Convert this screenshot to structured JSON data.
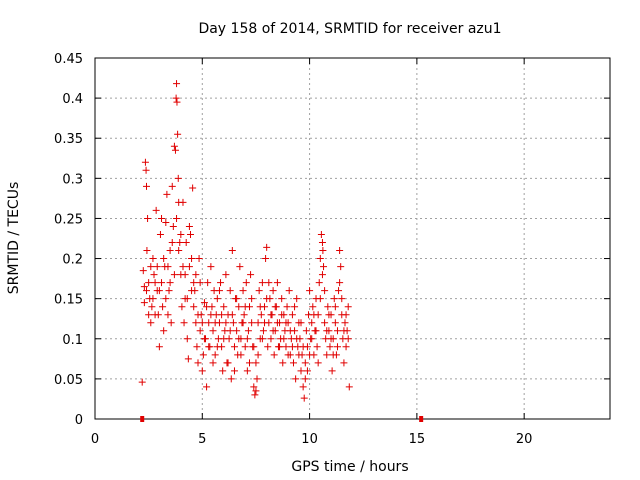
{
  "chart_data": {
    "type": "scatter",
    "title": "Day 158 of 2014, SRMTID for receiver azu1",
    "xlabel": "GPS time / hours",
    "ylabel": "SRMTID / TECUs",
    "xlim": [
      0,
      24
    ],
    "ylim": [
      0,
      0.45
    ],
    "xticks": [
      0,
      5,
      10,
      15,
      20
    ],
    "yticks": [
      0,
      0.05,
      0.1,
      0.15,
      0.2,
      0.25,
      0.3,
      0.35,
      0.4,
      0.45
    ],
    "xtick_labels": [
      "0",
      "5",
      "10",
      "15",
      "20"
    ],
    "ytick_labels": [
      "0",
      "0.05",
      "0.1",
      "0.15",
      "0.2",
      "0.25",
      "0.3",
      "0.35",
      "0.4",
      "0.45"
    ],
    "grid": true,
    "marker": "plus",
    "color": "#e00000",
    "axis_markers": [
      {
        "x": 2.2,
        "y": 0
      },
      {
        "x": 15.2,
        "y": 0
      }
    ],
    "series": [
      {
        "name": "azu1",
        "points": [
          [
            2.2,
            0.046
          ],
          [
            2.25,
            0.185
          ],
          [
            2.3,
            0.165
          ],
          [
            2.35,
            0.32
          ],
          [
            2.38,
            0.31
          ],
          [
            2.4,
            0.29
          ],
          [
            2.42,
            0.21
          ],
          [
            2.45,
            0.25
          ],
          [
            2.5,
            0.17
          ],
          [
            2.55,
            0.15
          ],
          [
            2.6,
            0.12
          ],
          [
            2.65,
            0.14
          ],
          [
            2.7,
            0.2
          ],
          [
            2.75,
            0.18
          ],
          [
            2.8,
            0.17
          ],
          [
            2.85,
            0.26
          ],
          [
            2.9,
            0.16
          ],
          [
            2.95,
            0.13
          ],
          [
            3.0,
            0.09
          ],
          [
            3.05,
            0.23
          ],
          [
            3.1,
            0.25
          ],
          [
            3.15,
            0.14
          ],
          [
            3.2,
            0.11
          ],
          [
            3.25,
            0.19
          ],
          [
            3.3,
            0.245
          ],
          [
            3.35,
            0.28
          ],
          [
            3.4,
            0.13
          ],
          [
            3.45,
            0.16
          ],
          [
            3.5,
            0.21
          ],
          [
            3.55,
            0.12
          ],
          [
            3.6,
            0.29
          ],
          [
            3.65,
            0.24
          ],
          [
            3.7,
            0.34
          ],
          [
            3.75,
            0.335
          ],
          [
            3.78,
            0.4
          ],
          [
            3.8,
            0.418
          ],
          [
            3.82,
            0.395
          ],
          [
            3.85,
            0.355
          ],
          [
            3.88,
            0.3
          ],
          [
            3.9,
            0.27
          ],
          [
            3.95,
            0.22
          ],
          [
            4.0,
            0.18
          ],
          [
            4.05,
            0.14
          ],
          [
            4.1,
            0.27
          ],
          [
            4.15,
            0.12
          ],
          [
            4.2,
            0.15
          ],
          [
            4.25,
            0.22
          ],
          [
            4.3,
            0.1
          ],
          [
            4.35,
            0.075
          ],
          [
            4.4,
            0.24
          ],
          [
            4.45,
            0.23
          ],
          [
            4.5,
            0.2
          ],
          [
            4.55,
            0.288
          ],
          [
            4.6,
            0.17
          ],
          [
            4.65,
            0.16
          ],
          [
            4.7,
            0.12
          ],
          [
            4.75,
            0.09
          ],
          [
            4.8,
            0.07
          ],
          [
            4.85,
            0.2
          ],
          [
            4.9,
            0.11
          ],
          [
            4.95,
            0.13
          ],
          [
            5.0,
            0.06
          ],
          [
            5.05,
            0.08
          ],
          [
            5.1,
            0.145
          ],
          [
            5.15,
            0.1
          ],
          [
            5.2,
            0.04
          ],
          [
            5.25,
            0.17
          ],
          [
            5.3,
            0.12
          ],
          [
            5.35,
            0.09
          ],
          [
            5.4,
            0.19
          ],
          [
            5.45,
            0.14
          ],
          [
            5.5,
            0.11
          ],
          [
            5.55,
            0.16
          ],
          [
            5.6,
            0.08
          ],
          [
            5.65,
            0.13
          ],
          [
            5.7,
            0.15
          ],
          [
            5.75,
            0.1
          ],
          [
            5.8,
            0.12
          ],
          [
            5.85,
            0.17
          ],
          [
            5.9,
            0.09
          ],
          [
            5.95,
            0.06
          ],
          [
            6.0,
            0.14
          ],
          [
            6.05,
            0.11
          ],
          [
            6.1,
            0.18
          ],
          [
            6.15,
            0.07
          ],
          [
            6.2,
            0.13
          ],
          [
            6.25,
            0.1
          ],
          [
            6.3,
            0.16
          ],
          [
            6.35,
            0.05
          ],
          [
            6.4,
            0.21
          ],
          [
            6.45,
            0.12
          ],
          [
            6.5,
            0.09
          ],
          [
            6.55,
            0.15
          ],
          [
            6.6,
            0.11
          ],
          [
            6.65,
            0.08
          ],
          [
            6.7,
            0.14
          ],
          [
            6.75,
            0.19
          ],
          [
            6.8,
            0.1
          ],
          [
            6.85,
            0.12
          ],
          [
            6.9,
            0.16
          ],
          [
            6.95,
            0.13
          ],
          [
            7.0,
            0.09
          ],
          [
            7.05,
            0.17
          ],
          [
            7.1,
            0.06
          ],
          [
            7.15,
            0.11
          ],
          [
            7.2,
            0.14
          ],
          [
            7.25,
            0.18
          ],
          [
            7.3,
            0.15
          ],
          [
            7.35,
            0.09
          ],
          [
            7.4,
            0.04
          ],
          [
            7.45,
            0.03
          ],
          [
            7.5,
            0.07
          ],
          [
            7.55,
            0.05
          ],
          [
            7.6,
            0.12
          ],
          [
            7.65,
            0.16
          ],
          [
            7.7,
            0.1
          ],
          [
            7.75,
            0.13
          ],
          [
            7.8,
            0.17
          ],
          [
            7.85,
            0.11
          ],
          [
            7.9,
            0.14
          ],
          [
            7.95,
            0.2
          ],
          [
            8.0,
            0.214
          ],
          [
            8.05,
            0.09
          ],
          [
            8.1,
            0.12
          ],
          [
            8.15,
            0.15
          ],
          [
            8.2,
            0.1
          ],
          [
            8.25,
            0.13
          ],
          [
            8.3,
            0.16
          ],
          [
            8.35,
            0.08
          ],
          [
            8.4,
            0.11
          ],
          [
            8.45,
            0.14
          ],
          [
            8.5,
            0.17
          ],
          [
            8.55,
            0.09
          ],
          [
            8.6,
            0.12
          ],
          [
            8.65,
            0.1
          ],
          [
            8.7,
            0.15
          ],
          [
            8.75,
            0.07
          ],
          [
            8.8,
            0.13
          ],
          [
            8.85,
            0.11
          ],
          [
            8.9,
            0.09
          ],
          [
            8.95,
            0.14
          ],
          [
            9.0,
            0.12
          ],
          [
            9.05,
            0.16
          ],
          [
            9.1,
            0.08
          ],
          [
            9.15,
            0.1
          ],
          [
            9.2,
            0.13
          ],
          [
            9.25,
            0.07
          ],
          [
            9.3,
            0.11
          ],
          [
            9.35,
            0.05
          ],
          [
            9.4,
            0.15
          ],
          [
            9.45,
            0.09
          ],
          [
            9.5,
            0.12
          ],
          [
            9.55,
            0.1
          ],
          [
            9.6,
            0.06
          ],
          [
            9.65,
            0.08
          ],
          [
            9.7,
            0.04
          ],
          [
            9.75,
            0.026
          ],
          [
            9.8,
            0.07
          ],
          [
            9.85,
            0.11
          ],
          [
            9.9,
            0.09
          ],
          [
            9.95,
            0.13
          ],
          [
            10.0,
            0.16
          ],
          [
            10.05,
            0.1
          ],
          [
            10.1,
            0.12
          ],
          [
            10.15,
            0.14
          ],
          [
            10.2,
            0.08
          ],
          [
            10.25,
            0.11
          ],
          [
            10.3,
            0.15
          ],
          [
            10.35,
            0.09
          ],
          [
            10.4,
            0.13
          ],
          [
            10.45,
            0.17
          ],
          [
            10.5,
            0.2
          ],
          [
            10.55,
            0.23
          ],
          [
            10.6,
            0.22
          ],
          [
            10.62,
            0.21
          ],
          [
            10.65,
            0.19
          ],
          [
            10.7,
            0.12
          ],
          [
            10.75,
            0.1
          ],
          [
            10.8,
            0.08
          ],
          [
            10.85,
            0.14
          ],
          [
            10.9,
            0.11
          ],
          [
            10.95,
            0.09
          ],
          [
            11.0,
            0.13
          ],
          [
            11.05,
            0.06
          ],
          [
            11.1,
            0.1
          ],
          [
            11.15,
            0.15
          ],
          [
            11.2,
            0.12
          ],
          [
            11.25,
            0.08
          ],
          [
            11.3,
            0.11
          ],
          [
            11.35,
            0.16
          ],
          [
            11.4,
            0.21
          ],
          [
            11.45,
            0.19
          ],
          [
            11.5,
            0.13
          ],
          [
            11.55,
            0.1
          ],
          [
            11.6,
            0.07
          ],
          [
            11.65,
            0.12
          ],
          [
            11.7,
            0.09
          ],
          [
            11.75,
            0.11
          ],
          [
            11.8,
            0.14
          ],
          [
            11.85,
            0.04
          ],
          [
            2.3,
            0.145
          ],
          [
            2.4,
            0.16
          ],
          [
            2.5,
            0.13
          ],
          [
            2.6,
            0.19
          ],
          [
            2.7,
            0.15
          ],
          [
            2.8,
            0.13
          ],
          [
            2.9,
            0.19
          ],
          [
            3.0,
            0.16
          ],
          [
            3.1,
            0.17
          ],
          [
            3.2,
            0.2
          ],
          [
            3.3,
            0.15
          ],
          [
            3.4,
            0.19
          ],
          [
            3.5,
            0.17
          ],
          [
            3.6,
            0.22
          ],
          [
            3.7,
            0.18
          ],
          [
            3.8,
            0.25
          ],
          [
            3.9,
            0.21
          ],
          [
            4.0,
            0.23
          ],
          [
            4.1,
            0.19
          ],
          [
            4.2,
            0.18
          ],
          [
            4.3,
            0.15
          ],
          [
            4.4,
            0.19
          ],
          [
            4.5,
            0.16
          ],
          [
            4.6,
            0.14
          ],
          [
            4.7,
            0.18
          ],
          [
            4.8,
            0.13
          ],
          [
            4.9,
            0.17
          ],
          [
            5.0,
            0.12
          ],
          [
            5.1,
            0.1
          ],
          [
            5.2,
            0.14
          ],
          [
            5.3,
            0.09
          ],
          [
            5.4,
            0.13
          ],
          [
            5.5,
            0.07
          ],
          [
            5.6,
            0.12
          ],
          [
            5.7,
            0.09
          ],
          [
            5.8,
            0.16
          ],
          [
            5.9,
            0.13
          ],
          [
            6.0,
            0.1
          ],
          [
            6.1,
            0.12
          ],
          [
            6.2,
            0.07
          ],
          [
            6.3,
            0.11
          ],
          [
            6.4,
            0.13
          ],
          [
            6.5,
            0.06
          ],
          [
            6.6,
            0.15
          ],
          [
            6.7,
            0.1
          ],
          [
            6.8,
            0.08
          ],
          [
            6.9,
            0.12
          ],
          [
            7.0,
            0.14
          ],
          [
            7.1,
            0.1
          ],
          [
            7.2,
            0.07
          ],
          [
            7.3,
            0.12
          ],
          [
            7.4,
            0.09
          ],
          [
            7.5,
            0.035
          ],
          [
            7.6,
            0.08
          ],
          [
            7.7,
            0.14
          ],
          [
            7.8,
            0.1
          ],
          [
            7.9,
            0.12
          ],
          [
            8.0,
            0.15
          ],
          [
            8.1,
            0.17
          ],
          [
            8.2,
            0.13
          ],
          [
            8.3,
            0.11
          ],
          [
            8.4,
            0.14
          ],
          [
            8.5,
            0.12
          ],
          [
            8.6,
            0.09
          ],
          [
            8.7,
            0.13
          ],
          [
            8.8,
            0.1
          ],
          [
            8.9,
            0.12
          ],
          [
            9.0,
            0.08
          ],
          [
            9.1,
            0.11
          ],
          [
            9.2,
            0.09
          ],
          [
            9.3,
            0.14
          ],
          [
            9.4,
            0.1
          ],
          [
            9.5,
            0.08
          ],
          [
            9.6,
            0.12
          ],
          [
            9.7,
            0.09
          ],
          [
            9.8,
            0.05
          ],
          [
            9.9,
            0.06
          ],
          [
            10.0,
            0.08
          ],
          [
            10.1,
            0.1
          ],
          [
            10.2,
            0.13
          ],
          [
            10.3,
            0.11
          ],
          [
            10.4,
            0.07
          ],
          [
            10.5,
            0.15
          ],
          [
            10.6,
            0.18
          ],
          [
            10.7,
            0.16
          ],
          [
            10.8,
            0.11
          ],
          [
            10.9,
            0.13
          ],
          [
            11.0,
            0.1
          ],
          [
            11.1,
            0.08
          ],
          [
            11.2,
            0.14
          ],
          [
            11.3,
            0.09
          ],
          [
            11.4,
            0.17
          ],
          [
            11.5,
            0.15
          ],
          [
            11.6,
            0.11
          ],
          [
            11.7,
            0.13
          ],
          [
            11.8,
            0.1
          ]
        ]
      }
    ]
  }
}
